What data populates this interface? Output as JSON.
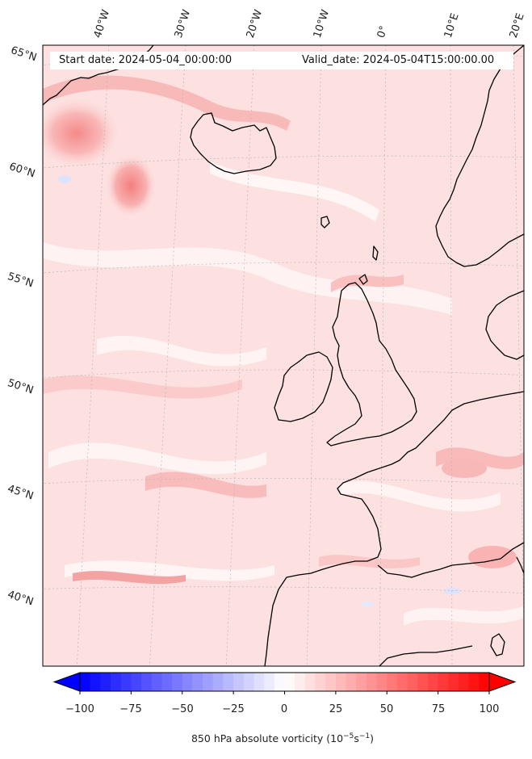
{
  "header": {
    "start_label": "Start date: 2024-05-04_00:00:00",
    "valid_label": "Valid_date: 2024-05-04T15:00:00.00"
  },
  "longitude_ticks": [
    "40°W",
    "30°W",
    "20°W",
    "10°W",
    "0°",
    "10°E",
    "20°E"
  ],
  "latitude_ticks": [
    "65°N",
    "60°N",
    "55°N",
    "50°N",
    "45°N",
    "40°N"
  ],
  "colorbar": {
    "ticks": [
      "−100",
      "−75",
      "−50",
      "−25",
      "0",
      "25",
      "50",
      "75",
      "100"
    ],
    "min": -100,
    "max": 100,
    "levels": 40,
    "low_color": "#0000ff",
    "mid_color": "#ffffff",
    "high_color": "#ff0000",
    "label_main": "850 hPa absolute vorticity (10",
    "label_exp1": "−5",
    "label_unit": "s",
    "label_exp2": "−1",
    "label_close": ")"
  },
  "colors": {
    "field_base": "#fde2e2",
    "coastline": "#000000",
    "gridline": "#b8b8b8"
  }
}
